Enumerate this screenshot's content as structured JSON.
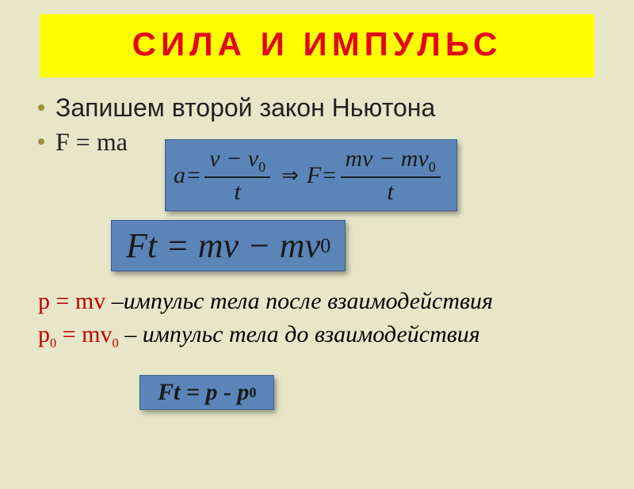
{
  "colors": {
    "background": "#e7e6c8",
    "banner_bg": "#ffff00",
    "banner_text": "#e30613",
    "text_dark": "#222222",
    "bullet": "#9c8f40",
    "box_bg": "#5b85b8",
    "box_border": "#3a5f8f",
    "box_text": "#1a1a1a",
    "red_text": "#c00000"
  },
  "title": {
    "text": "СИЛА   И   ИМПУЛЬС",
    "font_size": 42
  },
  "line1": "Запишем второй закон Ньютона",
  "line2": "F = ma",
  "box_a": {
    "lhs_var": "a",
    "frac1_num": "v − v",
    "frac1_num_sub": "0",
    "frac1_den": "t",
    "arrow": "⇒",
    "mid_var": "F",
    "frac2_num": "mv − mv",
    "frac2_num_sub": "0",
    "frac2_den": "t",
    "eq": " = "
  },
  "box_b": {
    "text_main": "Ft = mv − mv",
    "text_sub": "0"
  },
  "lower": {
    "p_line_red": "p = mv",
    "p_line_tail": " –импульс тела после взаимодействия",
    "p0_line_red_a": "p",
    "p0_line_red_sub": "0",
    "p0_line_red_b": " = mv",
    "p0_line_red_sub2": "0",
    "p0_line_tail": " – импульс тела до взаимодействия"
  },
  "box_c": {
    "text_a": "Ft = p - p",
    "text_sub": "0"
  }
}
